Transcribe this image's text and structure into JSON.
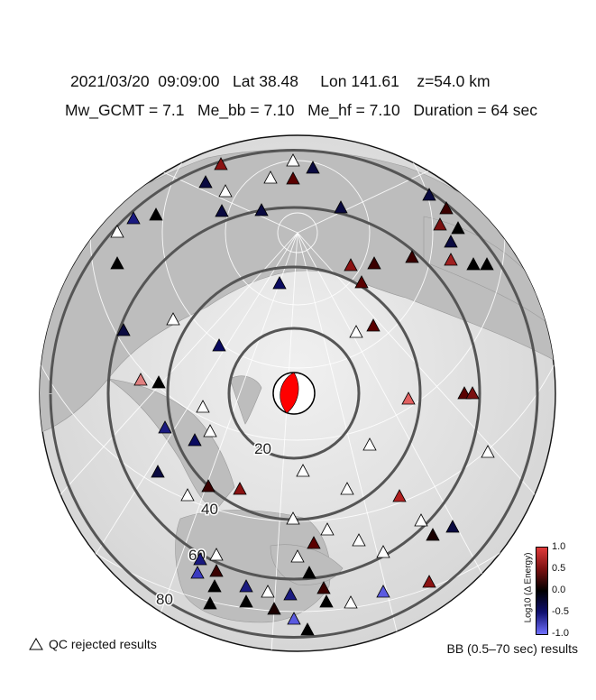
{
  "header": {
    "line1": "2021/03/20  09:09:00   Lat 38.48     Lon 141.61    z=54.0 km",
    "line2": "Mw_GCMT = 7.1   Me_bb = 7.10   Me_hf = 7.10   Duration = 64 sec"
  },
  "distance_labels": [
    "20",
    "40",
    "60",
    "80"
  ],
  "legend": {
    "qc_rejected": "QC rejected results",
    "bb_results": "BB (0.5–70 sec) results"
  },
  "colorbar": {
    "label": "Log10 (Δ Energy)",
    "ticks": [
      "1.0",
      "0.5",
      "0.0",
      "-0.5",
      "-1.0"
    ]
  },
  "colors": {
    "beachball_fill": "#ff0000",
    "ring": "#555555",
    "qc_rejected": "#ffffff"
  }
}
